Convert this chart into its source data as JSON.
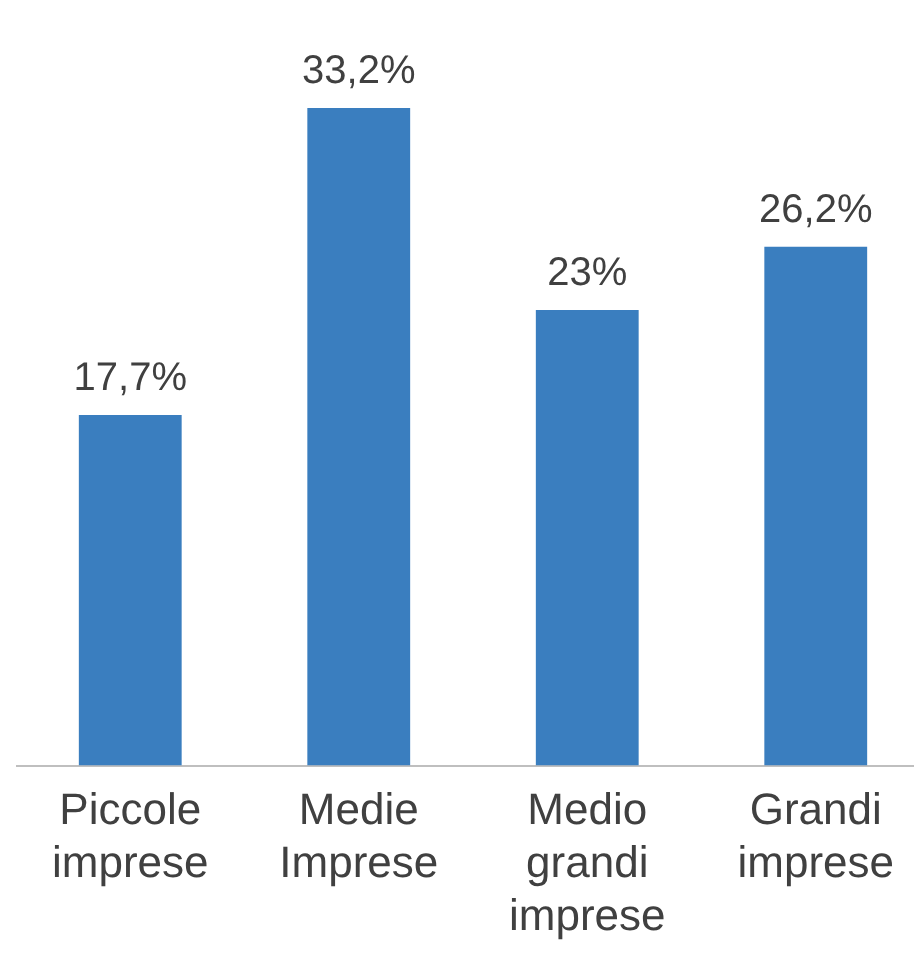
{
  "chart_data": {
    "type": "bar",
    "categories": [
      "Piccole imprese",
      "Medie Imprese",
      "Medio grandi imprese",
      "Grandi imprese"
    ],
    "values": [
      17.7,
      33.2,
      23,
      26.2
    ],
    "value_labels": [
      "17,7%",
      "33,2%",
      "23%",
      "26,2%"
    ],
    "color": "#3a7ebf",
    "grid": false,
    "legend": false
  }
}
